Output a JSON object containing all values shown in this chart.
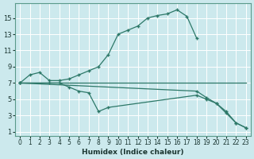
{
  "xlabel": "Humidex (Indice chaleur)",
  "bg_color": "#cce9ed",
  "grid_color": "#ffffff",
  "line_color": "#2d7868",
  "xlim_min": -0.5,
  "xlim_max": 23.5,
  "ylim_min": 0.5,
  "ylim_max": 16.8,
  "xticks": [
    0,
    1,
    2,
    3,
    4,
    5,
    6,
    7,
    8,
    9,
    10,
    11,
    12,
    13,
    14,
    15,
    16,
    17,
    18,
    19,
    20,
    21,
    22,
    23
  ],
  "yticks": [
    1,
    3,
    5,
    7,
    9,
    11,
    13,
    15
  ],
  "curve1_x": [
    0,
    1,
    2,
    3,
    4,
    5,
    6,
    7,
    8,
    9,
    10,
    11,
    12,
    13,
    14,
    15,
    16,
    17,
    18
  ],
  "curve1_y": [
    7,
    8,
    8.3,
    7.3,
    7.3,
    7.5,
    8.0,
    8.5,
    9.0,
    10.5,
    13.0,
    13.5,
    14.0,
    15.0,
    15.3,
    15.5,
    16.0,
    15.2,
    12.5
  ],
  "curve2_x": [
    0,
    18,
    19,
    20,
    21,
    22,
    23
  ],
  "curve2_y": [
    7,
    7,
    7,
    7,
    7,
    7,
    7
  ],
  "curve3_x": [
    0,
    18,
    19,
    20,
    21,
    22,
    23
  ],
  "curve3_y": [
    7,
    6.0,
    5.2,
    4.5,
    3.3,
    2.1,
    1.5
  ],
  "curve4_x": [
    0,
    3,
    4,
    5,
    6,
    7,
    8,
    9,
    18,
    19,
    20,
    21,
    22,
    23
  ],
  "curve4_y": [
    7,
    7,
    7,
    6.5,
    6.0,
    5.8,
    3.5,
    4.0,
    5.5,
    5.0,
    4.5,
    3.5,
    2.1,
    1.5
  ]
}
